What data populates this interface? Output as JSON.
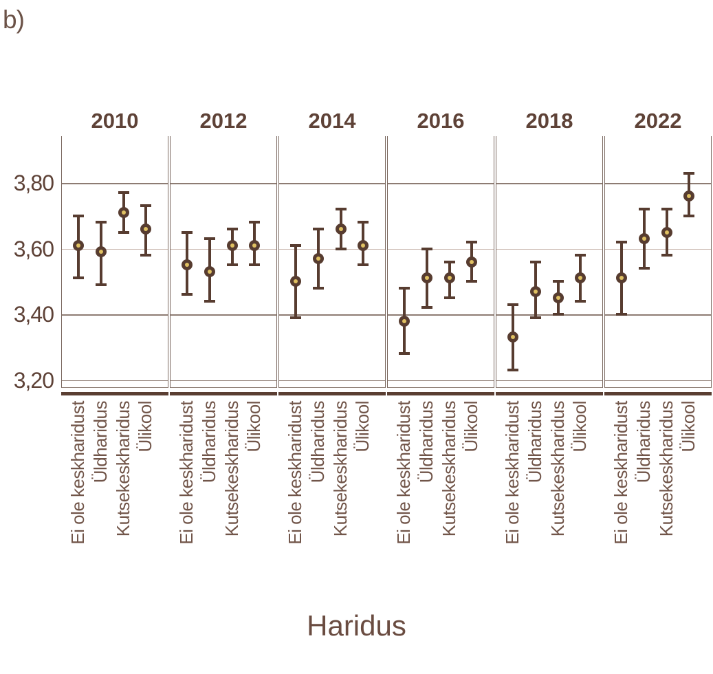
{
  "label": "b)",
  "xlabel": "Haridus",
  "colors": {
    "text": "#5E4237",
    "marker": "#573C30",
    "marker_center": "#E0C162",
    "grid": "#8D7C73",
    "grid_light": "#CBB9B1",
    "panel_border": "#7A685F",
    "axis_bar": "#5A3E32",
    "category_text": "#715549"
  },
  "chart_data": {
    "type": "scatter",
    "subtype": "point-estimate-with-error-bars",
    "title": "b)",
    "xlabel": "Haridus",
    "ylabel": "",
    "facets": [
      "2010",
      "2012",
      "2014",
      "2016",
      "2018",
      "2022"
    ],
    "categories": [
      "Ei ole keskharidust",
      "Üldharidus",
      "Kutsekeskharidus",
      "Ülikool"
    ],
    "ylim": [
      3.17,
      3.95
    ],
    "grid": true,
    "grid_highlight_value": 3.6,
    "yticks": [
      {
        "label": "3,80",
        "value": 3.8
      },
      {
        "label": "3,60",
        "value": 3.6
      },
      {
        "label": "3,40",
        "value": 3.4
      },
      {
        "label": "3,20",
        "value": 3.2
      }
    ],
    "series": [
      {
        "facet": "2010",
        "points": [
          {
            "category": "Ei ole keskharidust",
            "y": 3.61,
            "lo": 3.51,
            "hi": 3.7
          },
          {
            "category": "Üldharidus",
            "y": 3.59,
            "lo": 3.49,
            "hi": 3.68
          },
          {
            "category": "Kutsekeskharidus",
            "y": 3.71,
            "lo": 3.65,
            "hi": 3.77
          },
          {
            "category": "Ülikool",
            "y": 3.66,
            "lo": 3.58,
            "hi": 3.73
          }
        ]
      },
      {
        "facet": "2012",
        "points": [
          {
            "category": "Ei ole keskharidust",
            "y": 3.55,
            "lo": 3.46,
            "hi": 3.65
          },
          {
            "category": "Üldharidus",
            "y": 3.53,
            "lo": 3.44,
            "hi": 3.63
          },
          {
            "category": "Kutsekeskharidus",
            "y": 3.61,
            "lo": 3.55,
            "hi": 3.66
          },
          {
            "category": "Ülikool",
            "y": 3.61,
            "lo": 3.55,
            "hi": 3.68
          }
        ]
      },
      {
        "facet": "2014",
        "points": [
          {
            "category": "Ei ole keskharidust",
            "y": 3.5,
            "lo": 3.39,
            "hi": 3.61
          },
          {
            "category": "Üldharidus",
            "y": 3.57,
            "lo": 3.48,
            "hi": 3.66
          },
          {
            "category": "Kutsekeskharidus",
            "y": 3.66,
            "lo": 3.6,
            "hi": 3.72
          },
          {
            "category": "Ülikool",
            "y": 3.61,
            "lo": 3.55,
            "hi": 3.68
          }
        ]
      },
      {
        "facet": "2016",
        "points": [
          {
            "category": "Ei ole keskharidust",
            "y": 3.38,
            "lo": 3.28,
            "hi": 3.48
          },
          {
            "category": "Üldharidus",
            "y": 3.51,
            "lo": 3.42,
            "hi": 3.6
          },
          {
            "category": "Kutsekeskharidus",
            "y": 3.51,
            "lo": 3.45,
            "hi": 3.56
          },
          {
            "category": "Ülikool",
            "y": 3.56,
            "lo": 3.5,
            "hi": 3.62
          }
        ]
      },
      {
        "facet": "2018",
        "points": [
          {
            "category": "Ei ole keskharidust",
            "y": 3.33,
            "lo": 3.23,
            "hi": 3.43
          },
          {
            "category": "Üldharidus",
            "y": 3.47,
            "lo": 3.39,
            "hi": 3.56
          },
          {
            "category": "Kutsekeskharidus",
            "y": 3.45,
            "lo": 3.4,
            "hi": 3.5
          },
          {
            "category": "Ülikool",
            "y": 3.51,
            "lo": 3.44,
            "hi": 3.58
          }
        ]
      },
      {
        "facet": "2022",
        "points": [
          {
            "category": "Ei ole keskharidust",
            "y": 3.51,
            "lo": 3.4,
            "hi": 3.62
          },
          {
            "category": "Üldharidus",
            "y": 3.63,
            "lo": 3.54,
            "hi": 3.72
          },
          {
            "category": "Kutsekeskharidus",
            "y": 3.65,
            "lo": 3.58,
            "hi": 3.72
          },
          {
            "category": "Ülikool",
            "y": 3.76,
            "lo": 3.7,
            "hi": 3.83
          }
        ]
      }
    ]
  }
}
